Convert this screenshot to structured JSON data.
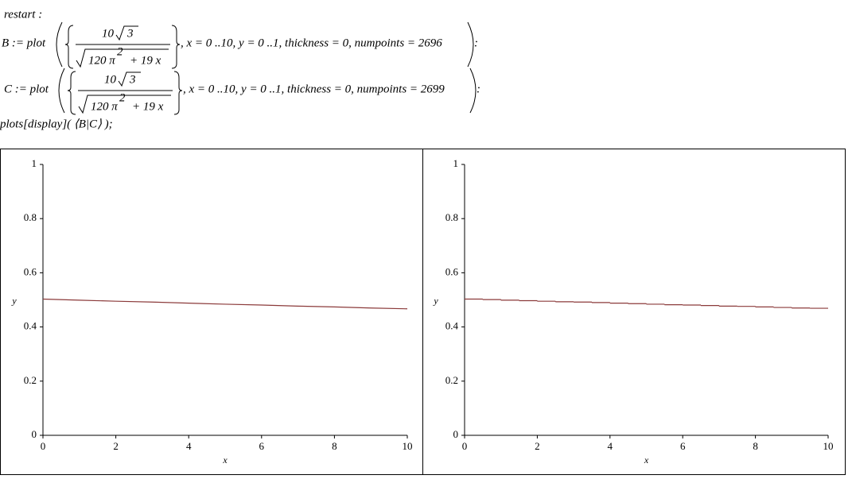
{
  "commands": [
    {
      "text": "restart :"
    },
    {
      "lhs": "B := plot",
      "numerator": "10",
      "radicand": "3",
      "denominator": "120 π",
      "exponent": "2",
      "denominator_rest": "+ 19 x",
      "args": ", x = 0 ..10, y = 0 ..1, thickness = 0, numpoints = 2696",
      "terminator": ":"
    },
    {
      "lhs": "C := plot",
      "numerator": "10",
      "radicand": "3",
      "denominator": "120 π",
      "exponent": "2",
      "denominator_rest": "+ 19 x",
      "args": ", x = 0 ..10, y = 0 ..1, thickness = 0, numpoints = 2699",
      "terminator": ":"
    },
    {
      "text": "plots[display]( ⟨B|C⟩ );"
    }
  ],
  "chart_data": [
    {
      "type": "line",
      "xlabel": "x",
      "ylabel": "y",
      "color": "#8b3a3a",
      "x": [
        0,
        1,
        2,
        3,
        4,
        5,
        6,
        7,
        8,
        9,
        10
      ],
      "values": [
        0.503,
        0.499,
        0.495,
        0.492,
        0.488,
        0.484,
        0.481,
        0.477,
        0.474,
        0.47,
        0.467
      ],
      "xlim": [
        0,
        10
      ],
      "ylim": [
        0,
        1
      ],
      "xticks": [
        0,
        2,
        4,
        6,
        8,
        10
      ],
      "yticks": [
        0,
        0.2,
        0.4,
        0.6,
        0.8,
        1
      ]
    },
    {
      "type": "step",
      "xlabel": "x",
      "ylabel": "y",
      "color": "#8b3a3a",
      "x": [
        0,
        0.5,
        1,
        1.5,
        2,
        2.5,
        3,
        3.5,
        4,
        4.5,
        5,
        5.5,
        6,
        6.5,
        7,
        7.5,
        8,
        8.5,
        9,
        9.5
      ],
      "values": [
        0.503,
        0.501,
        0.499,
        0.497,
        0.495,
        0.493,
        0.492,
        0.49,
        0.488,
        0.486,
        0.484,
        0.482,
        0.481,
        0.479,
        0.477,
        0.476,
        0.474,
        0.472,
        0.47,
        0.469
      ],
      "xlim": [
        0,
        10
      ],
      "ylim": [
        0,
        1
      ],
      "xticks": [
        0,
        2,
        4,
        6,
        8,
        10
      ],
      "yticks": [
        0,
        0.2,
        0.4,
        0.6,
        0.8,
        1
      ]
    }
  ]
}
